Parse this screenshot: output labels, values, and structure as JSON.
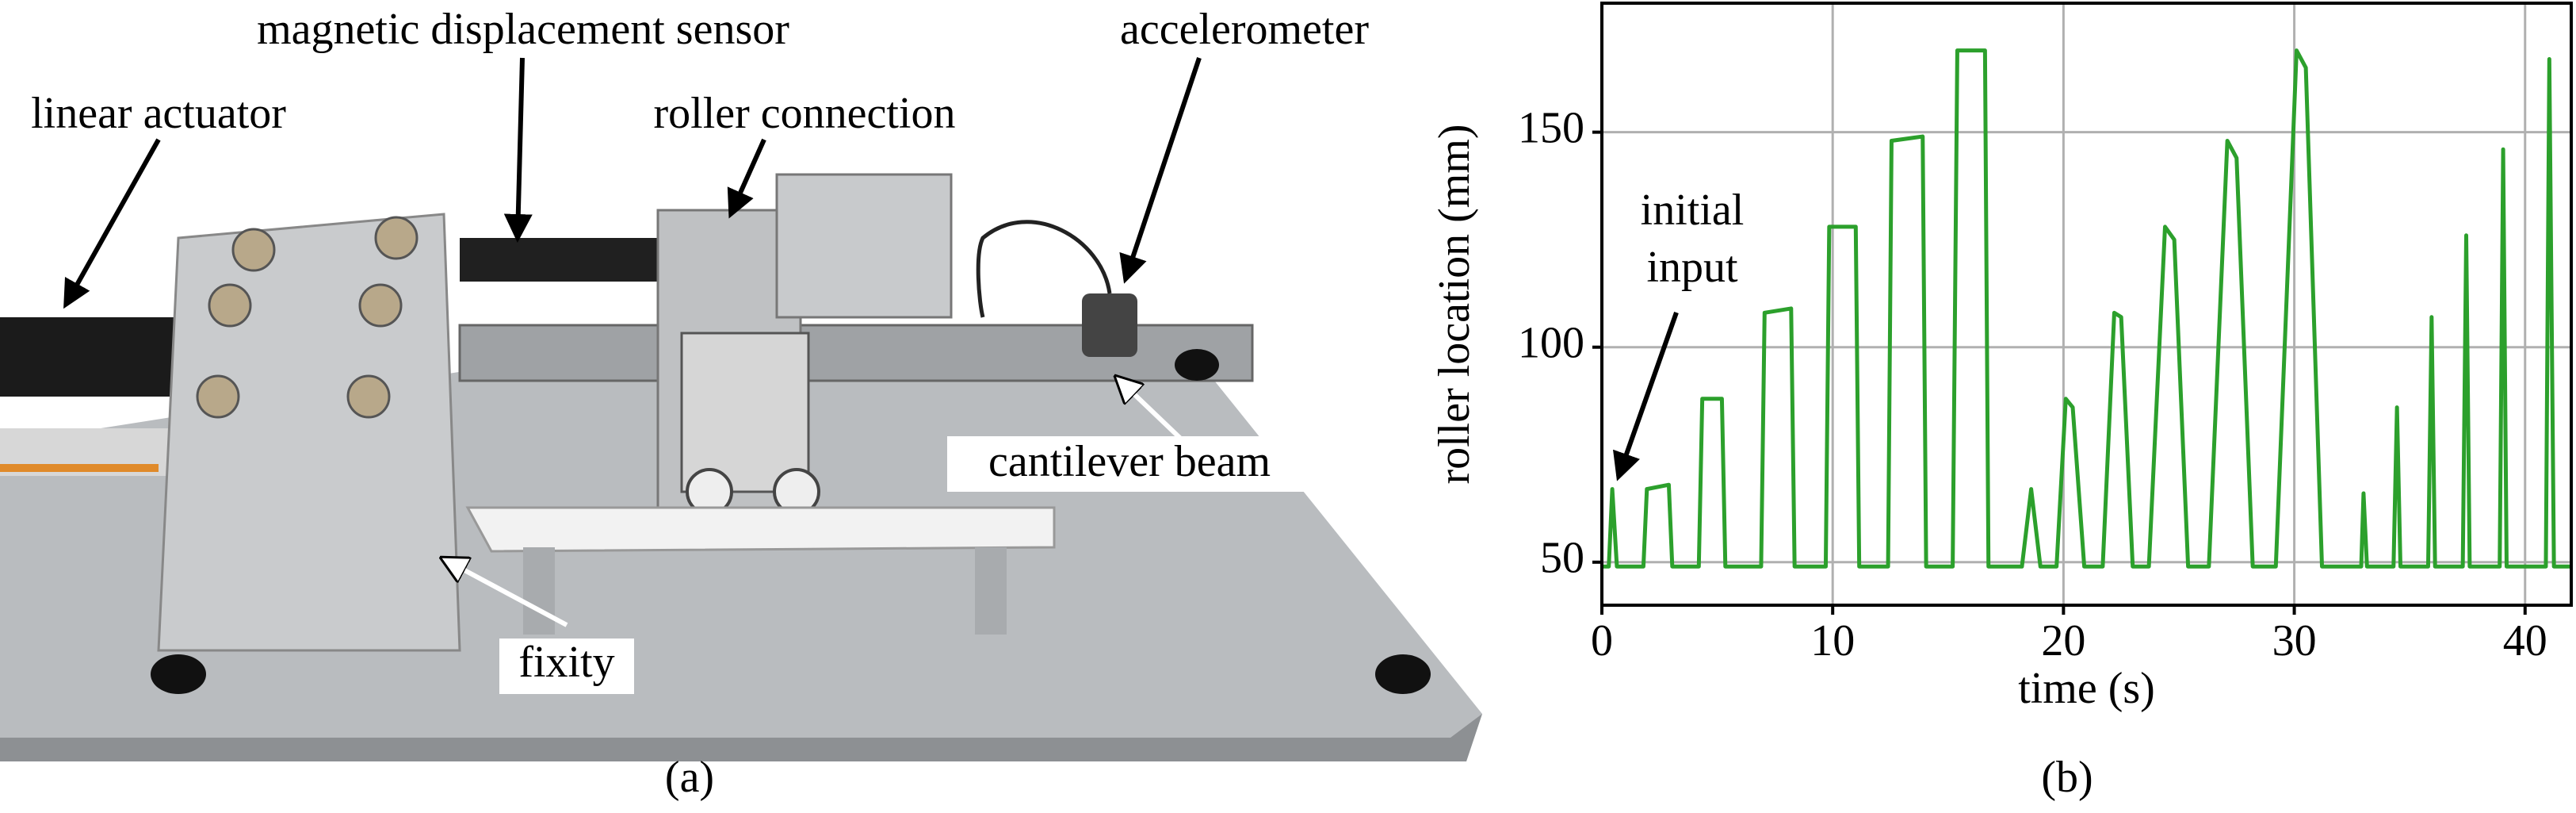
{
  "photo": {
    "labels": {
      "sensor": "magnetic displacement sensor",
      "accelerometer": "accelerometer",
      "actuator": "linear actuator",
      "roller": "roller connection",
      "beam": "cantilever beam",
      "fixity": "fixity"
    },
    "caption": "(a)"
  },
  "chart_data": {
    "type": "line",
    "caption": "(b)",
    "xlabel": "time (s)",
    "ylabel": "roller location (mm)",
    "annotation": [
      "initial",
      "input"
    ],
    "xlim": [
      0,
      42
    ],
    "ylim": [
      40,
      180
    ],
    "xticks": [
      0,
      10,
      20,
      30,
      40
    ],
    "yticks": [
      50,
      100,
      150
    ],
    "grid": true,
    "x": [
      0,
      0.3,
      0.45,
      0.65,
      1.8,
      1.95,
      2.9,
      3.05,
      4.2,
      4.35,
      5.2,
      5.35,
      6.9,
      7.05,
      8.2,
      8.35,
      9.7,
      9.85,
      11.0,
      11.15,
      12.4,
      12.55,
      13.9,
      14.05,
      15.2,
      15.4,
      16.6,
      16.75,
      18.2,
      18.6,
      19.0,
      19.7,
      20.1,
      20.4,
      20.9,
      21.7,
      22.2,
      22.5,
      23.0,
      23.7,
      24.4,
      24.8,
      25.4,
      26.3,
      27.1,
      27.5,
      28.2,
      29.2,
      30.1,
      30.5,
      31.2,
      32.9,
      33.0,
      33.15,
      34.3,
      34.45,
      34.6,
      35.8,
      35.95,
      36.1,
      37.3,
      37.45,
      37.6,
      38.9,
      39.05,
      39.2,
      40.9,
      41.05,
      41.25,
      42
    ],
    "series": [
      {
        "color": "#2ca02c",
        "values": [
          49,
          49,
          67,
          49,
          49,
          67,
          68,
          49,
          49,
          88,
          88,
          49,
          49,
          108,
          109,
          49,
          49,
          128,
          128,
          49,
          49,
          148,
          149,
          49,
          49,
          169,
          169,
          49,
          49,
          67,
          49,
          49,
          88,
          86,
          49,
          49,
          108,
          107,
          49,
          49,
          128,
          125,
          49,
          49,
          148,
          144,
          49,
          49,
          169,
          165,
          49,
          49,
          66,
          49,
          49,
          86,
          49,
          49,
          107,
          49,
          49,
          126,
          49,
          49,
          146,
          49,
          49,
          167,
          49,
          49
        ]
      }
    ]
  }
}
